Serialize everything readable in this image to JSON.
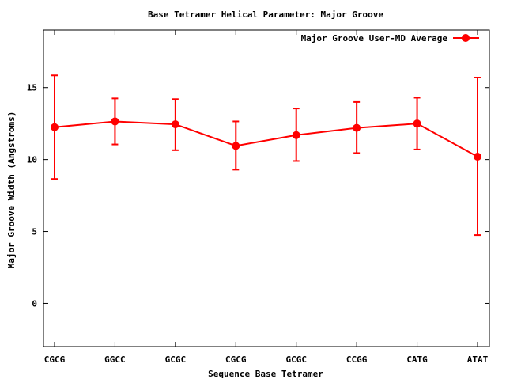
{
  "chart_data": {
    "type": "line",
    "title": "Base Tetramer Helical Parameter: Major Groove",
    "xlabel": "Sequence Base Tetramer",
    "ylabel": "Major Groove Width (Angstroms)",
    "ylim": [
      -3,
      19
    ],
    "yticks": [
      0,
      5,
      10,
      15
    ],
    "grid": false,
    "legend_position": "top-right",
    "categories": [
      "CGCG",
      "GGCC",
      "GCGC",
      "CGCG",
      "GCGC",
      "CCGG",
      "CATG",
      "ATAT"
    ],
    "series": [
      {
        "name": "Major Groove User-MD Average",
        "color": "#ff0000",
        "values": [
          12.25,
          12.65,
          12.45,
          10.95,
          11.7,
          12.2,
          12.5,
          10.2
        ],
        "error_low": [
          8.65,
          11.05,
          10.65,
          9.3,
          9.9,
          10.45,
          10.7,
          4.75
        ],
        "error_high": [
          15.85,
          14.25,
          14.2,
          12.65,
          13.55,
          14.0,
          14.3,
          15.7
        ]
      }
    ]
  }
}
